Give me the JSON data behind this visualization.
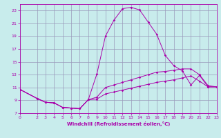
{
  "xlabel": "Windchill (Refroidissement éolien,°C)",
  "background_color": "#c8ecec",
  "grid_color": "#9999bb",
  "line_color": "#aa00aa",
  "xlim": [
    0,
    23
  ],
  "ylim": [
    7,
    24
  ],
  "xticks": [
    0,
    2,
    3,
    4,
    5,
    6,
    7,
    8,
    9,
    10,
    11,
    12,
    13,
    14,
    15,
    16,
    17,
    18,
    19,
    20,
    21,
    22,
    23
  ],
  "yticks": [
    7,
    9,
    11,
    13,
    15,
    17,
    19,
    21,
    23
  ],
  "line1_x": [
    0,
    2,
    3,
    4,
    5,
    6,
    7,
    8,
    9,
    10,
    11,
    12,
    13,
    14,
    15,
    16,
    17,
    18,
    19,
    20,
    21,
    22,
    23
  ],
  "line1_y": [
    10.7,
    9.3,
    8.7,
    8.6,
    7.9,
    7.8,
    7.7,
    9.1,
    13.1,
    19.0,
    21.5,
    23.3,
    23.5,
    23.1,
    21.2,
    19.3,
    16.0,
    14.4,
    13.6,
    11.4,
    12.9,
    11.1,
    11.1
  ],
  "line2_x": [
    0,
    2,
    3,
    4,
    5,
    6,
    7,
    8,
    9,
    10,
    11,
    12,
    13,
    14,
    15,
    16,
    17,
    18,
    19,
    20,
    21,
    22,
    23
  ],
  "line2_y": [
    10.7,
    9.3,
    8.7,
    8.6,
    7.9,
    7.8,
    7.7,
    9.1,
    9.5,
    11.0,
    11.4,
    11.8,
    12.2,
    12.6,
    13.0,
    13.4,
    13.5,
    13.7,
    13.9,
    13.9,
    13.0,
    11.3,
    11.1
  ],
  "line3_x": [
    0,
    2,
    3,
    4,
    5,
    6,
    7,
    8,
    9,
    10,
    11,
    12,
    13,
    14,
    15,
    16,
    17,
    18,
    19,
    20,
    21,
    22,
    23
  ],
  "line3_y": [
    10.7,
    9.3,
    8.7,
    8.6,
    7.9,
    7.8,
    7.7,
    9.1,
    9.2,
    10.0,
    10.3,
    10.6,
    10.9,
    11.2,
    11.5,
    11.8,
    12.0,
    12.2,
    12.5,
    12.8,
    12.0,
    11.1,
    11.1
  ]
}
